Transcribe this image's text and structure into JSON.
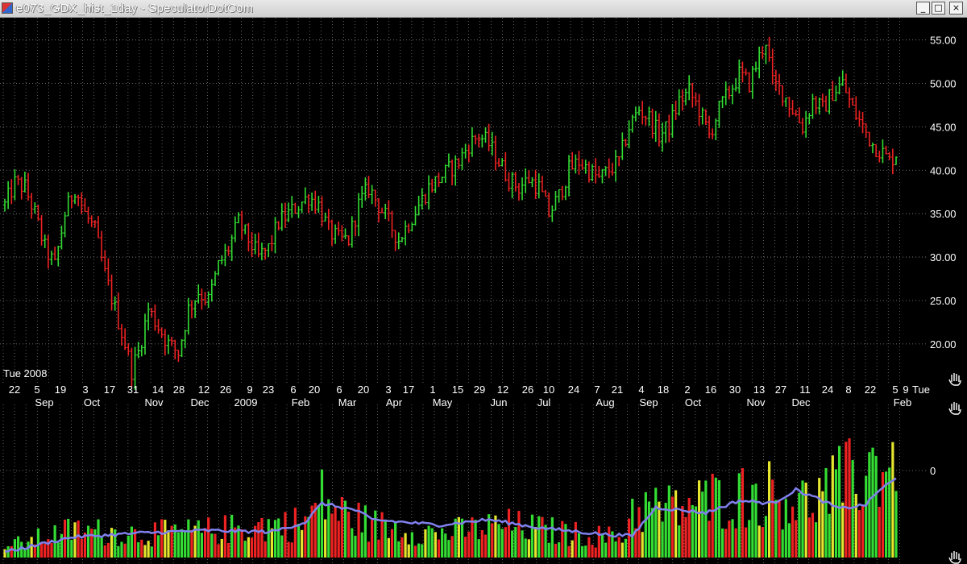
{
  "window": {
    "title": "e073_GDX_hist_1day - SpeculatorDotCom",
    "buttons": {
      "minimize": "_",
      "maximize": "□",
      "close": "×"
    }
  },
  "colors": {
    "up": "#33dd33",
    "down": "#ee2222",
    "neutral": "#e6e62e",
    "ma": "#8080ee",
    "grid": "#8a8a8a",
    "bg": "#000000",
    "text": "#ffffff"
  },
  "chart_data": [
    {
      "type": "line",
      "chart_kind": "ohlc-bars",
      "series": [
        {
          "ticker": "GDX"
        }
      ],
      "start_label": "Tue 2008",
      "ylim": [
        16,
        57
      ],
      "y_ticks": [
        "55.00",
        "50.00",
        "45.00",
        "40.00",
        "35.00",
        "30.00",
        "25.00",
        "20.00"
      ],
      "y_tick_values": [
        55,
        50,
        45,
        40,
        35,
        30,
        25,
        20
      ],
      "x_day_labels": [
        "22",
        "5",
        "19",
        "3",
        "17",
        "31",
        "14",
        "28",
        "12",
        "26",
        "9",
        "23",
        "6",
        "20",
        "6",
        "20",
        "3",
        "17",
        "1",
        "15",
        "29",
        "12",
        "26",
        "10",
        "24",
        "7",
        "21",
        "4",
        "18",
        "2",
        "16",
        "30",
        "13",
        "27",
        "11",
        "24",
        "8",
        "22",
        "5",
        "9",
        "Tue"
      ],
      "x_month_labels": [
        "Sep",
        "Oct",
        "Nov",
        "Dec",
        "2009",
        "Feb",
        "Mar",
        "Apr",
        "May",
        "Jun",
        "Jul",
        "Aug",
        "Sep",
        "Oct",
        "Nov",
        "Dec",
        "Feb"
      ],
      "close_path": [
        [
          0,
          36
        ],
        [
          3,
          38.5
        ],
        [
          6,
          38
        ],
        [
          9,
          35
        ],
        [
          12,
          31
        ],
        [
          15,
          29
        ],
        [
          18,
          35
        ],
        [
          21,
          38
        ],
        [
          24,
          35
        ],
        [
          27,
          33
        ],
        [
          30,
          28
        ],
        [
          33,
          24
        ],
        [
          36,
          20
        ],
        [
          38,
          17
        ],
        [
          40,
          19
        ],
        [
          43,
          24
        ],
        [
          46,
          22
        ],
        [
          49,
          20
        ],
        [
          52,
          19
        ],
        [
          55,
          24
        ],
        [
          58,
          26
        ],
        [
          61,
          25
        ],
        [
          64,
          29
        ],
        [
          67,
          31
        ],
        [
          70,
          34
        ],
        [
          73,
          32
        ],
        [
          76,
          30
        ],
        [
          79,
          31
        ],
        [
          82,
          34
        ],
        [
          85,
          35
        ],
        [
          88,
          36
        ],
        [
          91,
          37
        ],
        [
          94,
          36
        ],
        [
          97,
          33
        ],
        [
          100,
          32
        ],
        [
          103,
          32
        ],
        [
          106,
          36
        ],
        [
          109,
          38
        ],
        [
          112,
          36
        ],
        [
          115,
          34
        ],
        [
          118,
          32
        ],
        [
          121,
          34
        ],
        [
          124,
          36
        ],
        [
          127,
          38
        ],
        [
          130,
          39
        ],
        [
          133,
          40
        ],
        [
          136,
          41
        ],
        [
          139,
          43
        ],
        [
          142,
          44
        ],
        [
          145,
          43
        ],
        [
          148,
          41
        ],
        [
          151,
          39
        ],
        [
          154,
          38
        ],
        [
          157,
          39
        ],
        [
          160,
          38
        ],
        [
          163,
          35
        ],
        [
          166,
          37
        ],
        [
          169,
          40
        ],
        [
          172,
          41
        ],
        [
          175,
          40
        ],
        [
          178,
          39
        ],
        [
          181,
          40
        ],
        [
          184,
          41
        ],
        [
          187,
          45
        ],
        [
          190,
          47
        ],
        [
          193,
          46
        ],
        [
          196,
          44
        ],
        [
          199,
          45
        ],
        [
          202,
          48
        ],
        [
          205,
          49
        ],
        [
          208,
          47
        ],
        [
          211,
          44
        ],
        [
          214,
          47
        ],
        [
          217,
          49
        ],
        [
          220,
          51
        ],
        [
          223,
          50
        ],
        [
          226,
          53
        ],
        [
          228,
          55
        ],
        [
          230,
          50
        ],
        [
          233,
          49
        ],
        [
          236,
          47
        ],
        [
          239,
          45
        ],
        [
          242,
          48
        ],
        [
          245,
          47
        ],
        [
          248,
          49
        ],
        [
          251,
          50
        ],
        [
          254,
          47
        ],
        [
          257,
          45
        ],
        [
          260,
          43
        ],
        [
          263,
          42
        ],
        [
          265,
          41
        ],
        [
          267,
          42
        ]
      ]
    },
    {
      "type": "bar",
      "chart_kind": "volume",
      "y_label": "0",
      "bar_count": 268,
      "volume_envelope": [
        [
          0,
          10
        ],
        [
          20,
          25
        ],
        [
          40,
          22
        ],
        [
          60,
          24
        ],
        [
          80,
          30
        ],
        [
          90,
          32
        ],
        [
          95,
          55
        ],
        [
          100,
          42
        ],
        [
          110,
          30
        ],
        [
          130,
          22
        ],
        [
          150,
          30
        ],
        [
          170,
          22
        ],
        [
          185,
          18
        ],
        [
          188,
          45
        ],
        [
          200,
          45
        ],
        [
          215,
          55
        ],
        [
          230,
          60
        ],
        [
          240,
          50
        ],
        [
          255,
          75
        ],
        [
          267,
          95
        ]
      ],
      "ma_envelope": [
        [
          0,
          4
        ],
        [
          20,
          15
        ],
        [
          40,
          18
        ],
        [
          60,
          20
        ],
        [
          80,
          19
        ],
        [
          90,
          26
        ],
        [
          95,
          40
        ],
        [
          105,
          35
        ],
        [
          110,
          28
        ],
        [
          130,
          24
        ],
        [
          145,
          28
        ],
        [
          160,
          22
        ],
        [
          180,
          17
        ],
        [
          188,
          16
        ],
        [
          195,
          37
        ],
        [
          210,
          33
        ],
        [
          220,
          42
        ],
        [
          230,
          40
        ],
        [
          237,
          50
        ],
        [
          243,
          44
        ],
        [
          250,
          36
        ],
        [
          258,
          39
        ],
        [
          262,
          50
        ],
        [
          267,
          58
        ]
      ]
    }
  ]
}
